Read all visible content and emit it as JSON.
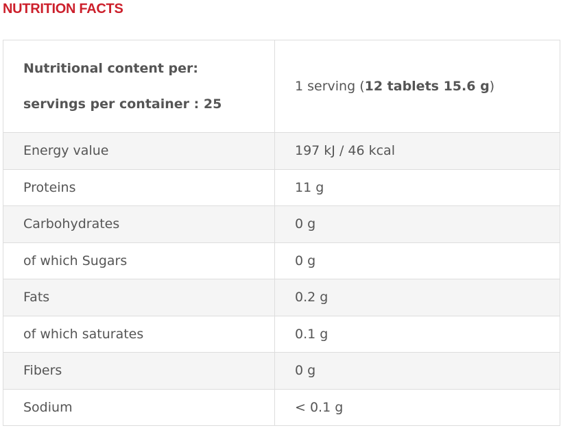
{
  "title": "NUTRITION FACTS",
  "header": {
    "left_line1": "Nutritional content per:",
    "left_line2": "servings per container : 25",
    "right_prefix": "1 serving (",
    "right_bold": "12 tablets 15.6 g",
    "right_suffix": ")"
  },
  "rows": [
    {
      "label": "Energy value",
      "value": "197 kJ / 46 kcal"
    },
    {
      "label": "Proteins",
      "value": "11 g"
    },
    {
      "label": "Carbohydrates",
      "value": "0 g"
    },
    {
      "label": "of which Sugars",
      "value": "0 g"
    },
    {
      "label": "Fats",
      "value": "0.2 g"
    },
    {
      "label": "of which saturates",
      "value": "0.1 g"
    },
    {
      "label": "Fibers",
      "value": "0 g"
    },
    {
      "label": "Sodium",
      "value": "< 0.1 g"
    }
  ]
}
